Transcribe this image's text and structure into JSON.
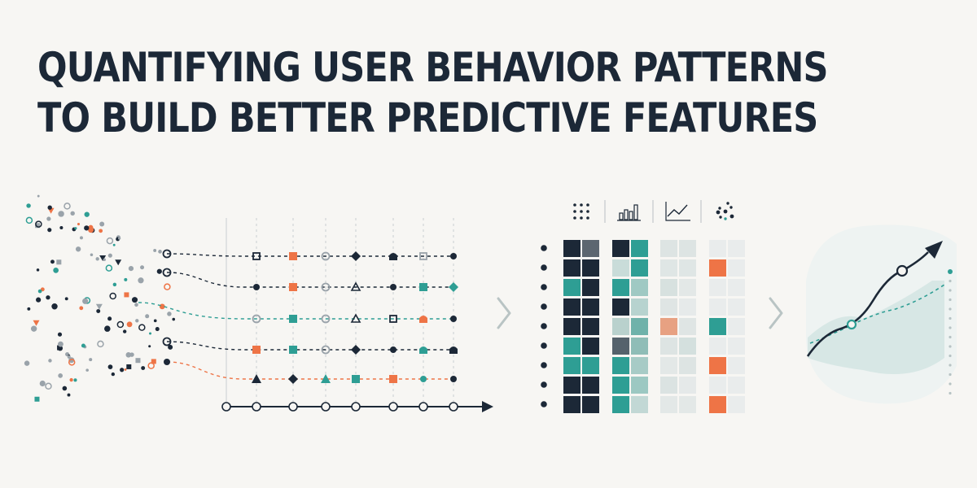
{
  "title": {
    "line1": "QUANTIFYING USER BEHAVIOR PATTERNS",
    "line2": "TO BUILD BETTER PREDICTIVE FEATURES"
  },
  "colors": {
    "background": "#f7f6f3",
    "ink": "#1c2837",
    "teal": "#2e9e94",
    "orange": "#ee7446",
    "grey": "#9aa3aa",
    "light_teal": "#dfecea"
  },
  "panels": {
    "scatter": {
      "icon": "scattered-event-dots"
    },
    "timeline": {
      "icon": "event-sequence-timeline",
      "rows": 5,
      "steps": 8
    },
    "matrix": {
      "icon": "feature-matrix",
      "header_icons": [
        "dot-grid-icon",
        "bar-chart-icon",
        "line-chart-icon",
        "dot-cluster-icon"
      ],
      "rows": 9
    },
    "prediction": {
      "icon": "trend-prediction-chart"
    }
  },
  "arrows": [
    "chevron-right-icon",
    "chevron-right-icon"
  ]
}
